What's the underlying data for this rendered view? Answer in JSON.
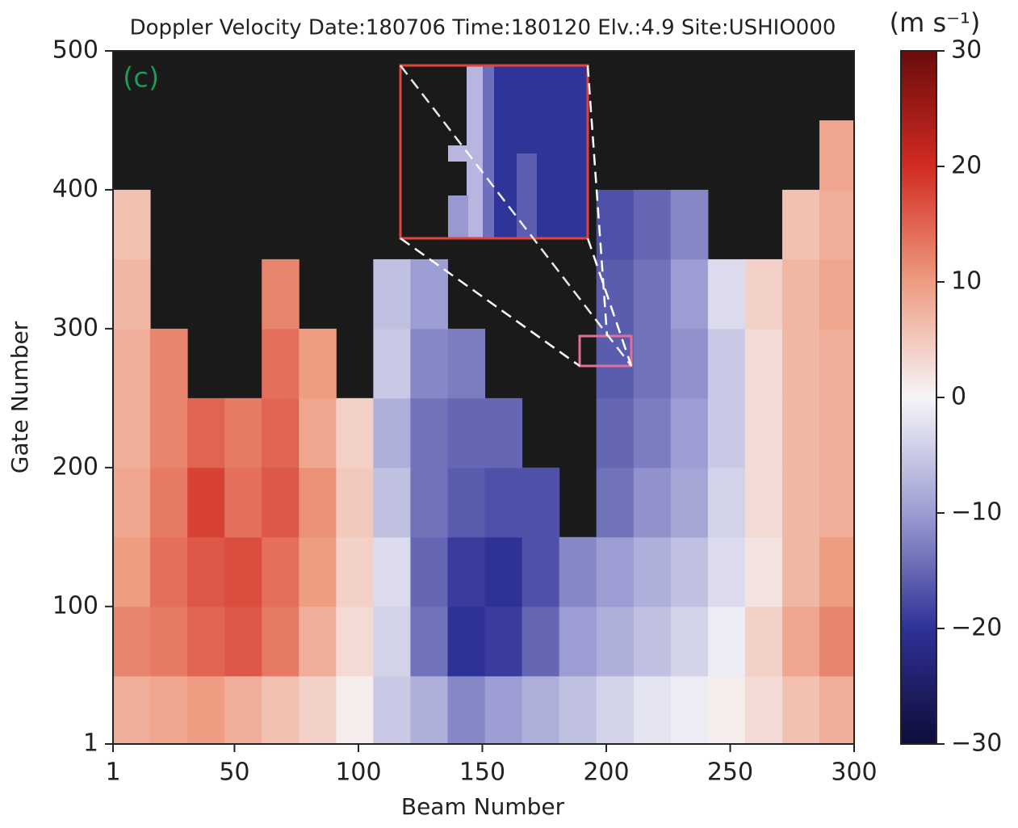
{
  "chart_data": {
    "type": "heatmap",
    "title": "Doppler Velocity  Date:180706 Time:180120 Elv.:4.9 Site:USHIO000",
    "panel_label": "(c)",
    "x_label": "Beam Number",
    "y_label": "Gate Number",
    "colorbar_label": "(m s⁻¹)",
    "xlim": [
      1,
      300
    ],
    "xticks": [
      1,
      50,
      100,
      150,
      200,
      250,
      300
    ],
    "ylim": [
      1,
      500
    ],
    "yticks": [
      1,
      100,
      200,
      300,
      400,
      500
    ],
    "clim": [
      -30,
      30
    ],
    "cticks": [
      {
        "value": -30,
        "label": "−30"
      },
      {
        "value": -20,
        "label": "−20"
      },
      {
        "value": -10,
        "label": "−10"
      },
      0,
      10,
      20,
      30
    ],
    "colormap": [
      "#0e0c38",
      "#2e3196",
      "#9c9dd2",
      "#f6f5f8",
      "#ee9c82",
      "#d22b22",
      "#6a0b0b"
    ],
    "missing_color": "#1a1a1a",
    "x_edges": [
      1,
      16,
      31,
      46,
      61,
      76,
      91,
      106,
      121,
      136,
      151,
      166,
      181,
      196,
      211,
      226,
      241,
      256,
      271,
      286,
      300
    ],
    "y_edges": [
      1,
      50,
      100,
      150,
      200,
      250,
      300,
      350,
      400,
      450,
      500
    ],
    "z": [
      [
        8,
        9,
        10,
        8,
        6,
        4,
        1,
        -5,
        -8,
        -12,
        -10,
        -8,
        -6,
        -4,
        -2,
        -1,
        1,
        3,
        6,
        8
      ],
      [
        12,
        13,
        15,
        16,
        13,
        8,
        3,
        -4,
        -14,
        -20,
        -19,
        -15,
        -10,
        -8,
        -6,
        -4,
        -1,
        4,
        9,
        12
      ],
      [
        10,
        14,
        16,
        17,
        14,
        10,
        4,
        -3,
        -15,
        -19,
        -20,
        -17,
        -12,
        -10,
        -8,
        -6,
        -3,
        2,
        7,
        10
      ],
      [
        9,
        13,
        18,
        14,
        16,
        11,
        5,
        -6,
        -14,
        -16,
        -17,
        -17,
        null,
        -14,
        -11,
        -9,
        -4,
        3,
        7,
        8
      ],
      [
        8,
        12,
        15,
        13,
        15,
        9,
        4,
        -8,
        -14,
        -15,
        -15,
        null,
        null,
        -15,
        -13,
        -10,
        -5,
        3,
        7,
        8
      ],
      [
        8,
        12,
        null,
        null,
        14,
        10,
        null,
        -5,
        -12,
        -13,
        null,
        null,
        null,
        -16,
        -14,
        -11,
        -5,
        3,
        7,
        8
      ],
      [
        7,
        null,
        null,
        null,
        12,
        null,
        null,
        -6,
        -10,
        null,
        null,
        null,
        null,
        -16,
        -14,
        -10,
        -3,
        4,
        7,
        9
      ],
      [
        6,
        null,
        null,
        null,
        null,
        null,
        null,
        null,
        null,
        null,
        null,
        null,
        null,
        -17,
        -15,
        -12,
        null,
        null,
        6,
        8
      ],
      [
        null,
        null,
        null,
        null,
        null,
        null,
        null,
        null,
        null,
        null,
        null,
        null,
        null,
        null,
        null,
        null,
        null,
        null,
        null,
        9
      ],
      [
        null,
        null,
        null,
        null,
        null,
        null,
        null,
        null,
        null,
        null,
        null,
        null,
        null,
        null,
        null,
        null,
        null,
        null,
        null,
        null
      ]
    ]
  }
}
